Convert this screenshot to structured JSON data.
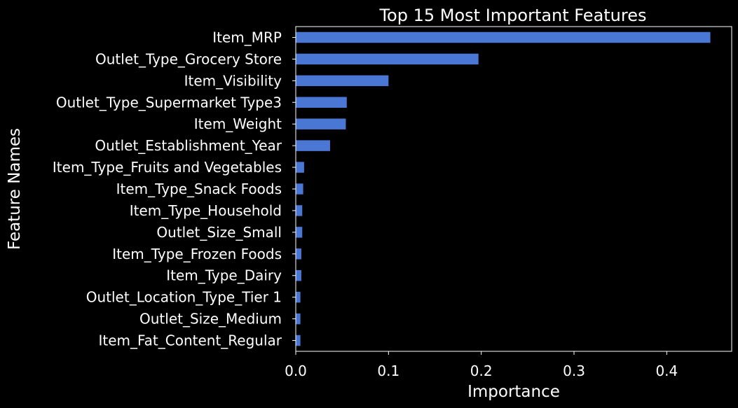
{
  "colors": {
    "background": "#000000",
    "bar": "#4a76d4",
    "text": "#ffffff",
    "axis": "#ffffff"
  },
  "chart_data": {
    "type": "bar",
    "orientation": "horizontal",
    "title": "Top 15 Most Important Features",
    "xlabel": "Importance",
    "ylabel": "Feature Names",
    "xlim": [
      0,
      0.47
    ],
    "xticks": [
      0.0,
      0.1,
      0.2,
      0.3,
      0.4
    ],
    "xtick_labels": [
      "0.0",
      "0.1",
      "0.2",
      "0.3",
      "0.4"
    ],
    "grid": false,
    "categories": [
      "Item_MRP",
      "Outlet_Type_Grocery Store",
      "Item_Visibility",
      "Outlet_Type_Supermarket Type3",
      "Item_Weight",
      "Outlet_Establishment_Year",
      "Item_Type_Fruits and Vegetables",
      "Item_Type_Snack Foods",
      "Item_Type_Household",
      "Outlet_Size_Small",
      "Item_Type_Frozen Foods",
      "Item_Type_Dairy",
      "Outlet_Location_Type_Tier 1",
      "Outlet_Size_Medium",
      "Item_Fat_Content_Regular"
    ],
    "values": [
      0.447,
      0.197,
      0.1,
      0.055,
      0.054,
      0.037,
      0.009,
      0.008,
      0.007,
      0.007,
      0.006,
      0.006,
      0.005,
      0.005,
      0.005
    ]
  }
}
